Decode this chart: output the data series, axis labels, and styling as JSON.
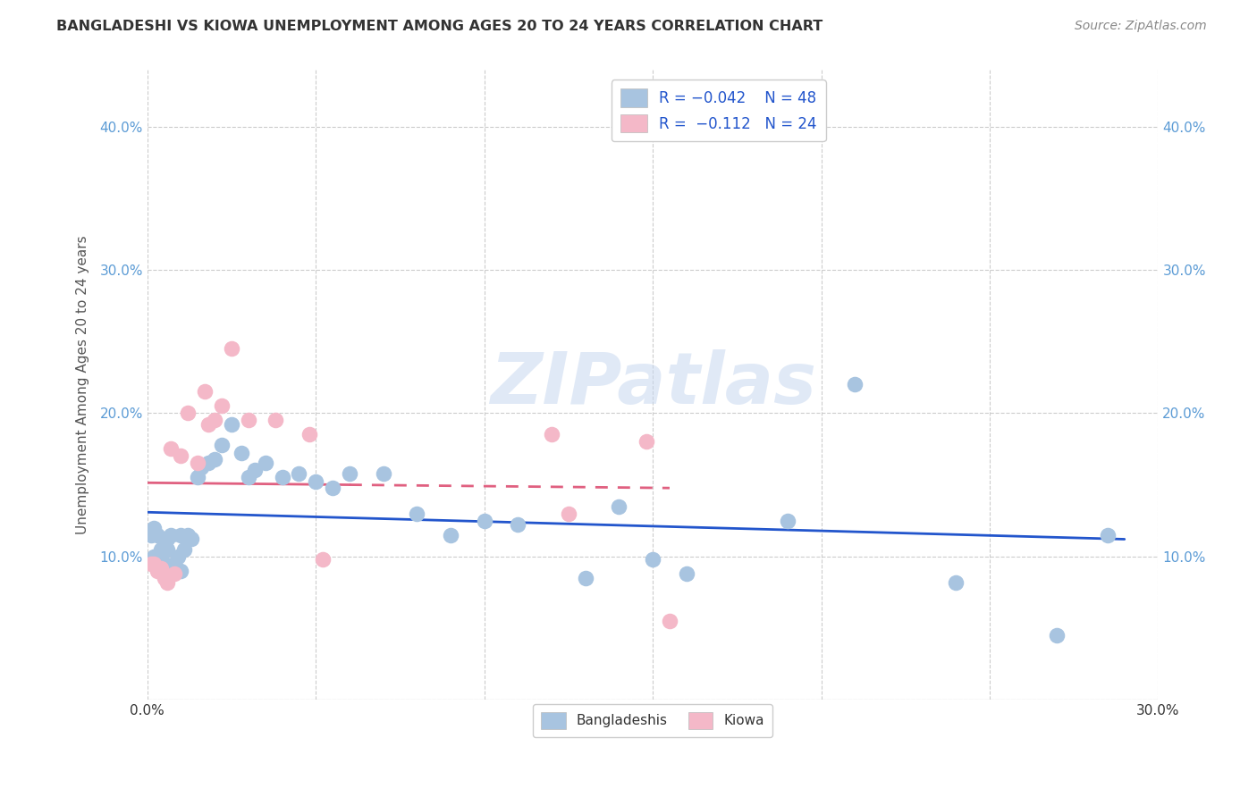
{
  "title": "BANGLADESHI VS KIOWA UNEMPLOYMENT AMONG AGES 20 TO 24 YEARS CORRELATION CHART",
  "source": "Source: ZipAtlas.com",
  "ylabel": "Unemployment Among Ages 20 to 24 years",
  "xlim": [
    0.0,
    0.3
  ],
  "ylim": [
    0.0,
    0.44
  ],
  "x_ticks": [
    0.0,
    0.05,
    0.1,
    0.15,
    0.2,
    0.25,
    0.3
  ],
  "y_ticks": [
    0.0,
    0.1,
    0.2,
    0.3,
    0.4
  ],
  "bangladeshi_color": "#a8c4e0",
  "kiowa_color": "#f4b8c8",
  "bangladeshi_line_color": "#2255cc",
  "kiowa_line_color": "#e06080",
  "watermark": "ZIPatlas",
  "bangladeshi_x": [
    0.001,
    0.002,
    0.002,
    0.003,
    0.003,
    0.004,
    0.004,
    0.005,
    0.005,
    0.006,
    0.006,
    0.007,
    0.008,
    0.009,
    0.01,
    0.01,
    0.011,
    0.012,
    0.013,
    0.015,
    0.016,
    0.018,
    0.02,
    0.022,
    0.025,
    0.028,
    0.03,
    0.032,
    0.035,
    0.04,
    0.045,
    0.05,
    0.055,
    0.06,
    0.07,
    0.08,
    0.09,
    0.1,
    0.11,
    0.13,
    0.14,
    0.15,
    0.16,
    0.19,
    0.21,
    0.24,
    0.27,
    0.285
  ],
  "bangladeshi_y": [
    0.115,
    0.12,
    0.1,
    0.115,
    0.095,
    0.105,
    0.09,
    0.11,
    0.095,
    0.112,
    0.105,
    0.115,
    0.095,
    0.1,
    0.115,
    0.09,
    0.105,
    0.115,
    0.112,
    0.155,
    0.162,
    0.165,
    0.168,
    0.178,
    0.192,
    0.172,
    0.155,
    0.16,
    0.165,
    0.155,
    0.158,
    0.152,
    0.148,
    0.158,
    0.158,
    0.13,
    0.115,
    0.125,
    0.122,
    0.085,
    0.135,
    0.098,
    0.088,
    0.125,
    0.22,
    0.082,
    0.045,
    0.115
  ],
  "kiowa_x": [
    0.001,
    0.002,
    0.003,
    0.004,
    0.005,
    0.006,
    0.007,
    0.008,
    0.01,
    0.012,
    0.015,
    0.017,
    0.018,
    0.02,
    0.022,
    0.025,
    0.03,
    0.038,
    0.048,
    0.052,
    0.12,
    0.125,
    0.148,
    0.155
  ],
  "kiowa_y": [
    0.095,
    0.095,
    0.09,
    0.092,
    0.085,
    0.082,
    0.175,
    0.088,
    0.17,
    0.2,
    0.165,
    0.215,
    0.192,
    0.195,
    0.205,
    0.245,
    0.195,
    0.195,
    0.185,
    0.098,
    0.185,
    0.13,
    0.18,
    0.055
  ]
}
